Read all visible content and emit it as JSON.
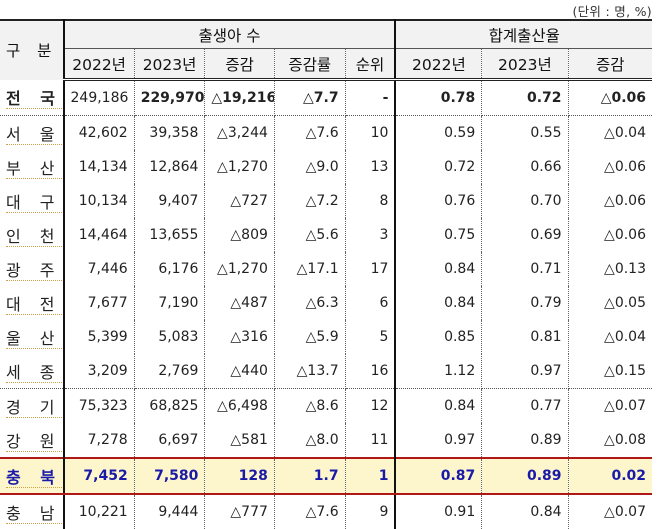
{
  "unit_label": "(단위 : 명, %)",
  "header": {
    "region": "구 분",
    "births_group": "출생아 수",
    "tfr_group": "합계출산율",
    "births_cols": [
      "2022년",
      "2023년",
      "증감",
      "증감률",
      "순위"
    ],
    "tfr_cols": [
      "2022년",
      "2023년",
      "증감"
    ]
  },
  "rows": [
    {
      "region": "전 국",
      "b2022": "249,186",
      "b2023": "229,970",
      "bchg": "△19,216",
      "brate": "△7.7",
      "rank": "-",
      "t2022": "0.78",
      "t2023": "0.72",
      "tchg": "△0.06"
    },
    {
      "region": "서 울",
      "b2022": "42,602",
      "b2023": "39,358",
      "bchg": "△3,244",
      "brate": "△7.6",
      "rank": "10",
      "t2022": "0.59",
      "t2023": "0.55",
      "tchg": "△0.04"
    },
    {
      "region": "부 산",
      "b2022": "14,134",
      "b2023": "12,864",
      "bchg": "△1,270",
      "brate": "△9.0",
      "rank": "13",
      "t2022": "0.72",
      "t2023": "0.66",
      "tchg": "△0.06"
    },
    {
      "region": "대 구",
      "b2022": "10,134",
      "b2023": "9,407",
      "bchg": "△727",
      "brate": "△7.2",
      "rank": "8",
      "t2022": "0.76",
      "t2023": "0.70",
      "tchg": "△0.06"
    },
    {
      "region": "인 천",
      "b2022": "14,464",
      "b2023": "13,655",
      "bchg": "△809",
      "brate": "△5.6",
      "rank": "3",
      "t2022": "0.75",
      "t2023": "0.69",
      "tchg": "△0.06"
    },
    {
      "region": "광 주",
      "b2022": "7,446",
      "b2023": "6,176",
      "bchg": "△1,270",
      "brate": "△17.1",
      "rank": "17",
      "t2022": "0.84",
      "t2023": "0.71",
      "tchg": "△0.13"
    },
    {
      "region": "대 전",
      "b2022": "7,677",
      "b2023": "7,190",
      "bchg": "△487",
      "brate": "△6.3",
      "rank": "6",
      "t2022": "0.84",
      "t2023": "0.79",
      "tchg": "△0.05"
    },
    {
      "region": "울 산",
      "b2022": "5,399",
      "b2023": "5,083",
      "bchg": "△316",
      "brate": "△5.9",
      "rank": "5",
      "t2022": "0.85",
      "t2023": "0.81",
      "tchg": "△0.04"
    },
    {
      "region": "세 종",
      "b2022": "3,209",
      "b2023": "2,769",
      "bchg": "△440",
      "brate": "△13.7",
      "rank": "16",
      "t2022": "1.12",
      "t2023": "0.97",
      "tchg": "△0.15"
    },
    {
      "region": "경 기",
      "b2022": "75,323",
      "b2023": "68,825",
      "bchg": "△6,498",
      "brate": "△8.6",
      "rank": "12",
      "t2022": "0.84",
      "t2023": "0.77",
      "tchg": "△0.07"
    },
    {
      "region": "강 원",
      "b2022": "7,278",
      "b2023": "6,697",
      "bchg": "△581",
      "brate": "△8.0",
      "rank": "11",
      "t2022": "0.97",
      "t2023": "0.89",
      "tchg": "△0.08"
    },
    {
      "region": "충 북",
      "b2022": "7,452",
      "b2023": "7,580",
      "bchg": "128",
      "brate": "1.7",
      "rank": "1",
      "t2022": "0.87",
      "t2023": "0.89",
      "tchg": "0.02"
    },
    {
      "region": "충 남",
      "b2022": "10,221",
      "b2023": "9,444",
      "bchg": "△777",
      "brate": "△7.6",
      "rank": "9",
      "t2022": "0.91",
      "t2023": "0.84",
      "tchg": "△0.07"
    }
  ],
  "colors": {
    "group_title": "#2233bb",
    "highlight_bg": "#fdf6cc",
    "highlight_text": "#1a1aa8",
    "highlight_border": "#b01818",
    "header_bg": "#f2f2f2"
  }
}
